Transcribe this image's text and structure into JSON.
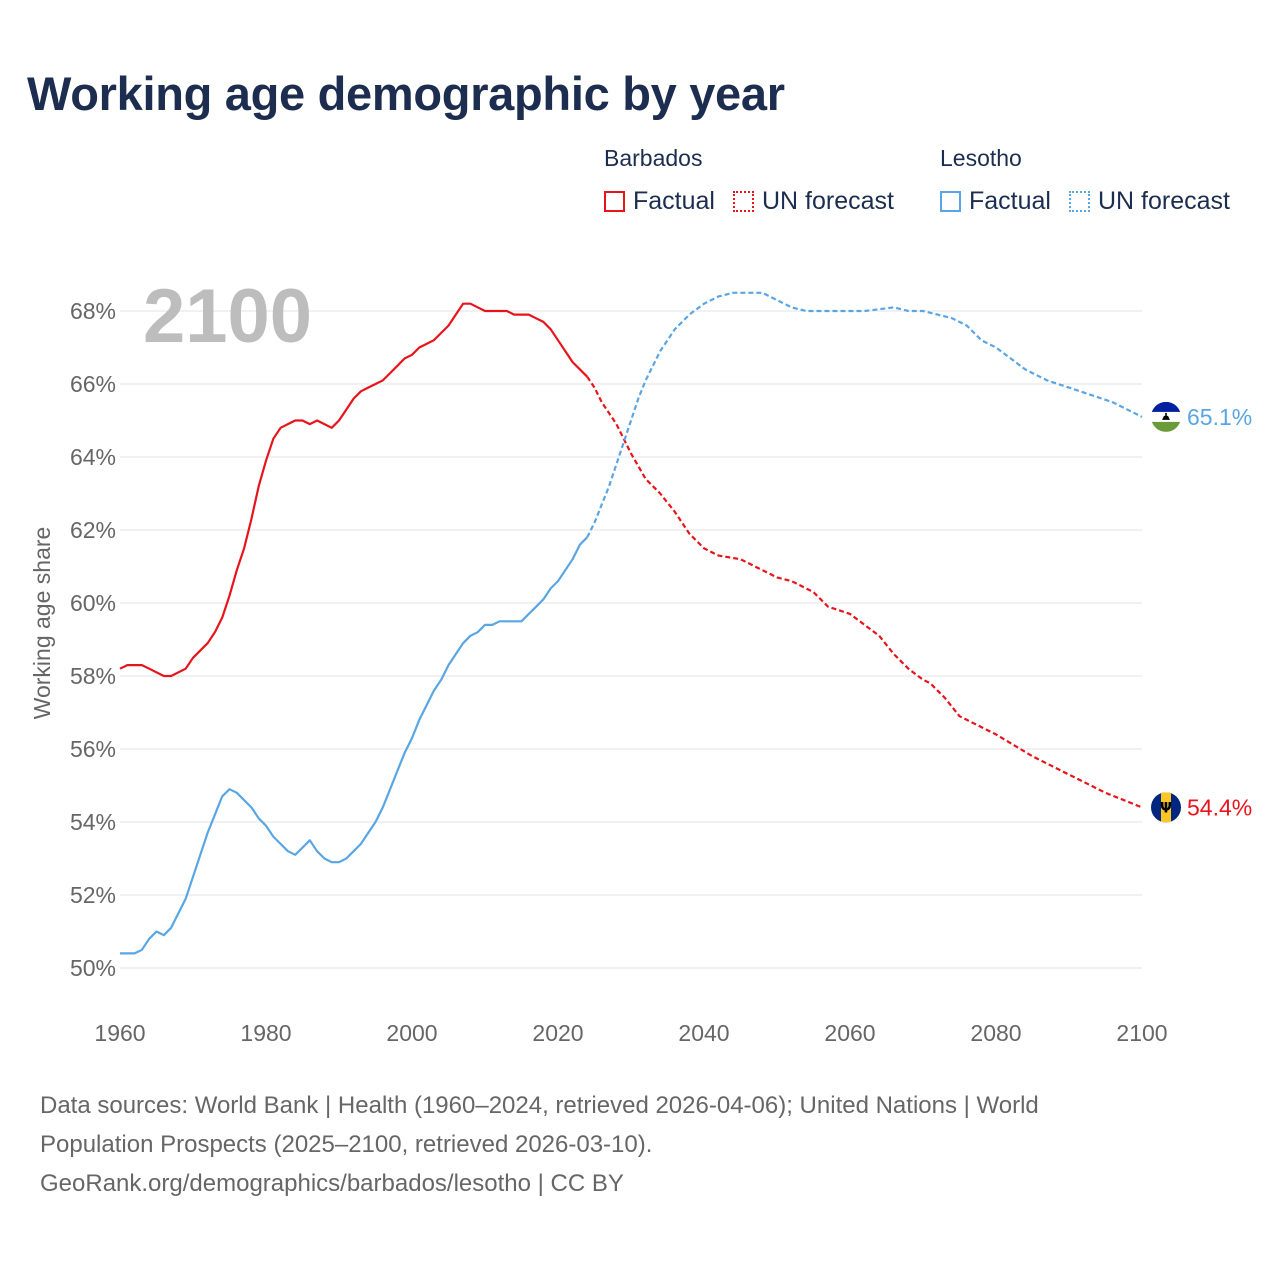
{
  "title": "Working age demographic by year",
  "legend": {
    "groups": [
      {
        "name": "Barbados",
        "color": "#e8141c",
        "factual_label": "Factual",
        "forecast_label": "UN forecast"
      },
      {
        "name": "Lesotho",
        "color": "#5aa5e3",
        "factual_label": "Factual",
        "forecast_label": "UN forecast"
      }
    ]
  },
  "year_display": "2100",
  "footer": {
    "line1": "Data sources: World Bank | Health (1960–2024, retrieved 2026-04-06); United Nations | World",
    "line2": "Population Prospects (2025–2100, retrieved 2026-03-10).",
    "line3": "GeoRank.org/demographics/barbados/lesotho | CC BY"
  },
  "chart_data": {
    "type": "line",
    "title": "Working age demographic by year",
    "xlabel": "",
    "ylabel": "Working age share",
    "xlim": [
      1960,
      2100
    ],
    "ylim": [
      49.5,
      69
    ],
    "x_ticks": [
      1960,
      1980,
      2000,
      2020,
      2040,
      2060,
      2080,
      2100
    ],
    "x_tick_labels": [
      "1960",
      "1980",
      "2000",
      "2020",
      "2040",
      "2060",
      "2080",
      "2100"
    ],
    "y_ticks": [
      50,
      52,
      54,
      56,
      58,
      60,
      62,
      64,
      66,
      68
    ],
    "y_tick_labels": [
      "50%",
      "52%",
      "54%",
      "56%",
      "58%",
      "60%",
      "62%",
      "64%",
      "66%",
      "68%"
    ],
    "grid": "horizontal",
    "factual_range": [
      1960,
      2024
    ],
    "forecast_range": [
      2025,
      2100
    ],
    "series": [
      {
        "name": "Barbados",
        "color": "#e8141c",
        "end_label": "54.4%",
        "flag": "barbados-flag",
        "x": [
          1960,
          1961,
          1963,
          1964,
          1966,
          1967,
          1969,
          1970,
          1972,
          1973,
          1974,
          1975,
          1976,
          1977,
          1978,
          1979,
          1980,
          1981,
          1982,
          1983,
          1984,
          1985,
          1986,
          1987,
          1988,
          1989,
          1990,
          1991,
          1992,
          1993,
          1994,
          1995,
          1996,
          1997,
          1998,
          1999,
          2000,
          2001,
          2002,
          2003,
          2004,
          2005,
          2006,
          2007,
          2008,
          2010,
          2011,
          2012,
          2013,
          2014,
          2016,
          2017,
          2018,
          2019,
          2020,
          2022,
          2024,
          2025,
          2026,
          2028,
          2030,
          2032,
          2034,
          2036,
          2038,
          2040,
          2042,
          2045,
          2047,
          2050,
          2052,
          2055,
          2057,
          2060,
          2062,
          2064,
          2066,
          2068,
          2070,
          2071,
          2073,
          2075,
          2080,
          2085,
          2090,
          2095,
          2100
        ],
        "values": [
          58.2,
          58.3,
          58.3,
          58.2,
          58.0,
          58.0,
          58.2,
          58.5,
          58.9,
          59.2,
          59.6,
          60.2,
          60.9,
          61.5,
          62.3,
          63.2,
          63.9,
          64.5,
          64.8,
          64.9,
          65.0,
          65.0,
          64.9,
          65.0,
          64.9,
          64.8,
          65.0,
          65.3,
          65.6,
          65.8,
          65.9,
          66.0,
          66.1,
          66.3,
          66.5,
          66.7,
          66.8,
          67.0,
          67.1,
          67.2,
          67.4,
          67.6,
          67.9,
          68.2,
          68.2,
          68.0,
          68.0,
          68.0,
          68.0,
          67.9,
          67.9,
          67.8,
          67.7,
          67.5,
          67.2,
          66.6,
          66.2,
          65.9,
          65.5,
          64.9,
          64.1,
          63.4,
          63.0,
          62.5,
          61.9,
          61.5,
          61.3,
          61.2,
          61.0,
          60.7,
          60.6,
          60.3,
          59.9,
          59.7,
          59.4,
          59.1,
          58.6,
          58.2,
          57.9,
          57.8,
          57.4,
          56.9,
          56.4,
          55.8,
          55.3,
          54.8,
          54.4
        ]
      },
      {
        "name": "Lesotho",
        "color": "#5aa5e3",
        "end_label": "65.1%",
        "flag": "lesotho-flag",
        "x": [
          1960,
          1962,
          1963,
          1964,
          1965,
          1966,
          1967,
          1968,
          1969,
          1970,
          1971,
          1972,
          1973,
          1974,
          1975,
          1976,
          1977,
          1978,
          1979,
          1980,
          1981,
          1982,
          1983,
          1984,
          1985,
          1986,
          1987,
          1988,
          1989,
          1990,
          1991,
          1992,
          1993,
          1994,
          1995,
          1996,
          1997,
          1998,
          1999,
          2000,
          2001,
          2002,
          2003,
          2004,
          2005,
          2006,
          2007,
          2008,
          2009,
          2010,
          2011,
          2012,
          2013,
          2014,
          2015,
          2016,
          2017,
          2018,
          2019,
          2020,
          2021,
          2022,
          2023,
          2024,
          2025,
          2026,
          2027,
          2028,
          2029,
          2030,
          2031,
          2032,
          2033,
          2034,
          2035,
          2036,
          2038,
          2040,
          2042,
          2044,
          2046,
          2048,
          2050,
          2052,
          2054,
          2056,
          2058,
          2062,
          2066,
          2068,
          2070,
          2072,
          2074,
          2076,
          2078,
          2080,
          2082,
          2084,
          2087,
          2090,
          2093,
          2096,
          2099,
          2100
        ],
        "values": [
          50.4,
          50.4,
          50.5,
          50.8,
          51.0,
          50.9,
          51.1,
          51.5,
          51.9,
          52.5,
          53.1,
          53.7,
          54.2,
          54.7,
          54.9,
          54.8,
          54.6,
          54.4,
          54.1,
          53.9,
          53.6,
          53.4,
          53.2,
          53.1,
          53.3,
          53.5,
          53.2,
          53.0,
          52.9,
          52.9,
          53.0,
          53.2,
          53.4,
          53.7,
          54.0,
          54.4,
          54.9,
          55.4,
          55.9,
          56.3,
          56.8,
          57.2,
          57.6,
          57.9,
          58.3,
          58.6,
          58.9,
          59.1,
          59.2,
          59.4,
          59.4,
          59.5,
          59.5,
          59.5,
          59.5,
          59.7,
          59.9,
          60.1,
          60.4,
          60.6,
          60.9,
          61.2,
          61.6,
          61.8,
          62.2,
          62.7,
          63.2,
          63.8,
          64.4,
          65.0,
          65.6,
          66.1,
          66.5,
          66.9,
          67.2,
          67.5,
          67.9,
          68.2,
          68.4,
          68.5,
          68.5,
          68.5,
          68.3,
          68.1,
          68.0,
          68.0,
          68.0,
          68.0,
          68.1,
          68.0,
          68.0,
          67.9,
          67.8,
          67.6,
          67.2,
          67.0,
          66.7,
          66.4,
          66.1,
          65.9,
          65.7,
          65.5,
          65.2,
          65.1
        ]
      }
    ]
  }
}
